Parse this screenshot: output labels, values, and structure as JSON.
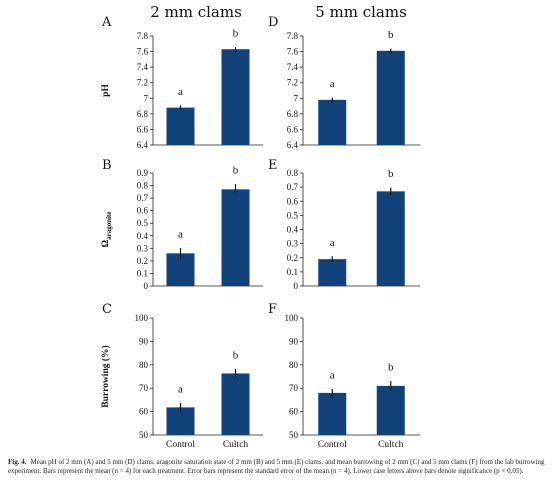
{
  "columns": [
    {
      "title": "2 mm clams"
    },
    {
      "title": "5 mm clams"
    }
  ],
  "caption": {
    "label": "Fig. 4.",
    "text": "Mean pH of 2 mm (A) and 5 mm (D) clams, aragonite saturation state of 2 mm (B) and 5 mm (E) clams, and mean burrowing of 2 mm (C) and 5 mm clams (F) from the lab burrowing experiment. Bars represent the mean (n = 4) for each treatment. Error bars represent the standard error of the mean (n = 4). Lower case letters above bars denote significance (p < 0.05)."
  },
  "colors": {
    "bar": "#12427a"
  },
  "chart_data": [
    {
      "panel": "A",
      "type": "bar",
      "ylabel": "pH",
      "ylabel_sub": "",
      "categories": [
        "Control",
        "Cultch"
      ],
      "values": [
        6.88,
        7.63
      ],
      "errors": [
        0.01,
        0.01
      ],
      "significance": [
        "a",
        "b"
      ],
      "ylim": [
        6.4,
        7.8
      ],
      "yticks": [
        "6.4",
        "6.6",
        "6.8",
        "7",
        "7.2",
        "7.4",
        "7.6",
        "7.8"
      ],
      "grid": false
    },
    {
      "panel": "D",
      "type": "bar",
      "ylabel": "",
      "ylabel_sub": "",
      "categories": [
        "Control",
        "Cultch"
      ],
      "values": [
        6.98,
        7.61
      ],
      "errors": [
        0.01,
        0.01
      ],
      "significance": [
        "a",
        "b"
      ],
      "ylim": [
        6.4,
        7.8
      ],
      "yticks": [
        "6.4",
        "6.6",
        "6.8",
        "7",
        "7.2",
        "7.4",
        "7.6",
        "7.8"
      ],
      "grid": false
    },
    {
      "panel": "B",
      "type": "bar",
      "ylabel": "Ω",
      "ylabel_sub": "aragonite",
      "categories": [
        "Control",
        "Cultch"
      ],
      "values": [
        0.26,
        0.77
      ],
      "errors": [
        0.03,
        0.03
      ],
      "significance": [
        "a",
        "b"
      ],
      "ylim": [
        0,
        0.9
      ],
      "yticks": [
        "0",
        "0.1",
        "0.2",
        "0.3",
        "0.4",
        "0.5",
        "0.6",
        "0.7",
        "0.8",
        "0.9"
      ],
      "grid": false
    },
    {
      "panel": "E",
      "type": "bar",
      "ylabel": "",
      "ylabel_sub": "",
      "categories": [
        "Control",
        "Cultch"
      ],
      "values": [
        0.19,
        0.67
      ],
      "errors": [
        0.01,
        0.015
      ],
      "significance": [
        "a",
        "b"
      ],
      "ylim": [
        0,
        0.8
      ],
      "yticks": [
        "0",
        "0.1",
        "0.2",
        "0.3",
        "0.4",
        "0.5",
        "0.6",
        "0.7",
        "0.8"
      ],
      "grid": false
    },
    {
      "panel": "C",
      "type": "bar",
      "ylabel": "Burrowing (%)",
      "ylabel_sub": "",
      "categories": [
        "Control",
        "Cultch"
      ],
      "values": [
        61.8,
        76.3
      ],
      "errors": [
        1.3,
        1.3
      ],
      "significance": [
        "a",
        "b"
      ],
      "ylim": [
        50,
        100
      ],
      "yticks": [
        "50",
        "60",
        "70",
        "80",
        "90",
        "100"
      ],
      "grid": false
    },
    {
      "panel": "F",
      "type": "bar",
      "ylabel": "",
      "ylabel_sub": "",
      "categories": [
        "Control",
        "Cultch"
      ],
      "values": [
        68.0,
        71.0
      ],
      "errors": [
        1.0,
        1.4
      ],
      "significance": [
        "a",
        "b"
      ],
      "ylim": [
        50,
        100
      ],
      "yticks": [
        "50",
        "60",
        "70",
        "80",
        "90",
        "100"
      ],
      "grid": false
    }
  ]
}
